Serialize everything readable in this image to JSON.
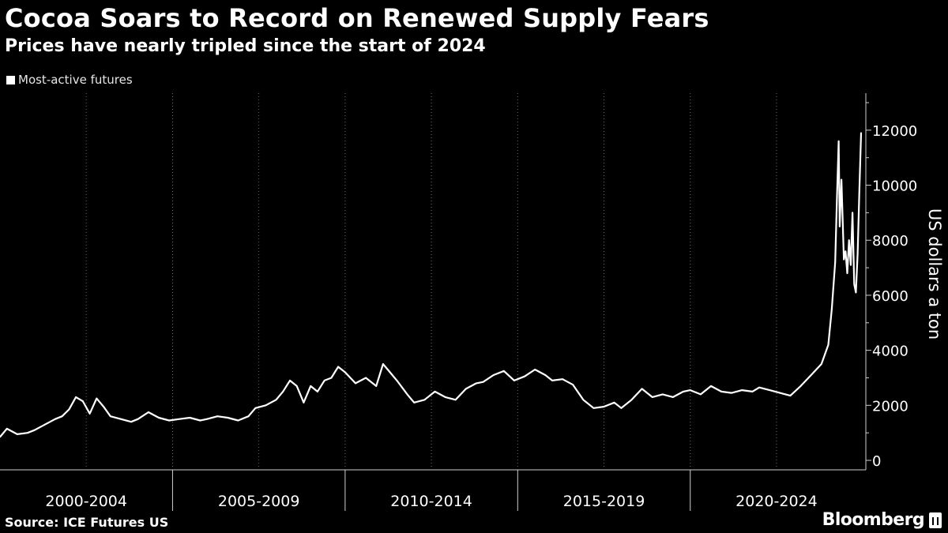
{
  "header": {
    "title": "Cocoa Soars to Record on Renewed Supply Fears",
    "subtitle": "Prices have nearly tripled since the start of 2024"
  },
  "footer": {
    "source": "Source: ICE Futures US",
    "brand": "Bloomberg"
  },
  "colors": {
    "background": "#000000",
    "line": "#ffffff",
    "grid": "#6b6b6b",
    "axis": "#d0d0d0"
  },
  "chart_data": {
    "type": "line",
    "title": "Cocoa Soars to Record on Renewed Supply Fears",
    "subtitle": "Prices have nearly tripled since the start of 2024",
    "legend": [
      "Most-active futures"
    ],
    "legend_position": "top-left",
    "xlabel": "",
    "ylabel": "US dollars a ton",
    "y_axis_side": "right",
    "ylim": [
      0,
      13000
    ],
    "yticks": [
      0,
      2000,
      4000,
      6000,
      8000,
      10000,
      12000
    ],
    "xlim": [
      2000.0,
      2024.95
    ],
    "period_labels": [
      "2000-2004",
      "2005-2009",
      "2010-2014",
      "2015-2019",
      "2020-2024"
    ],
    "period_boundaries": [
      2005,
      2010,
      2015,
      2020
    ],
    "grid": "vertical dotted",
    "series": [
      {
        "name": "Most-active futures",
        "x": [
          2000.0,
          2000.2,
          2000.5,
          2000.8,
          2001.0,
          2001.3,
          2001.6,
          2001.8,
          2002.0,
          2002.2,
          2002.4,
          2002.6,
          2002.8,
          2003.0,
          2003.2,
          2003.5,
          2003.8,
          2004.0,
          2004.3,
          2004.6,
          2004.9,
          2005.2,
          2005.5,
          2005.8,
          2006.0,
          2006.3,
          2006.6,
          2006.9,
          2007.2,
          2007.4,
          2007.7,
          2008.0,
          2008.2,
          2008.4,
          2008.6,
          2008.8,
          2009.0,
          2009.2,
          2009.4,
          2009.6,
          2009.8,
          2010.0,
          2010.3,
          2010.6,
          2010.9,
          2011.1,
          2011.3,
          2011.5,
          2011.8,
          2012.0,
          2012.3,
          2012.6,
          2012.9,
          2013.2,
          2013.5,
          2013.8,
          2014.0,
          2014.3,
          2014.6,
          2014.9,
          2015.2,
          2015.5,
          2015.8,
          2016.0,
          2016.3,
          2016.6,
          2016.9,
          2017.2,
          2017.5,
          2017.8,
          2018.0,
          2018.3,
          2018.6,
          2018.9,
          2019.2,
          2019.5,
          2019.8,
          2020.0,
          2020.3,
          2020.6,
          2020.9,
          2021.2,
          2021.5,
          2021.8,
          2022.0,
          2022.3,
          2022.6,
          2022.9,
          2023.2,
          2023.5,
          2023.8,
          2024.0,
          2024.1,
          2024.2,
          2024.25,
          2024.3,
          2024.33,
          2024.38,
          2024.45,
          2024.5,
          2024.55,
          2024.6,
          2024.65,
          2024.7,
          2024.75,
          2024.8,
          2024.85,
          2024.9,
          2024.95
        ],
        "values": [
          850,
          1150,
          950,
          1000,
          1100,
          1300,
          1500,
          1600,
          1850,
          2300,
          2150,
          1700,
          2250,
          1950,
          1600,
          1500,
          1400,
          1500,
          1750,
          1550,
          1450,
          1500,
          1550,
          1450,
          1500,
          1600,
          1550,
          1450,
          1600,
          1900,
          2000,
          2200,
          2500,
          2900,
          2700,
          2100,
          2700,
          2500,
          2900,
          3000,
          3400,
          3200,
          2800,
          3000,
          2700,
          3500,
          3200,
          2900,
          2400,
          2100,
          2200,
          2500,
          2300,
          2200,
          2600,
          2800,
          2850,
          3100,
          3250,
          2900,
          3050,
          3300,
          3100,
          2900,
          2950,
          2750,
          2200,
          1900,
          1950,
          2100,
          1900,
          2200,
          2600,
          2300,
          2400,
          2300,
          2500,
          2550,
          2400,
          2700,
          2500,
          2450,
          2550,
          2500,
          2650,
          2550,
          2450,
          2350,
          2700,
          3100,
          3500,
          4200,
          5500,
          7200,
          9500,
          11600,
          8500,
          10200,
          7300,
          7600,
          6800,
          8000,
          7100,
          9000,
          6400,
          6100,
          7500,
          9800,
          11900
        ]
      }
    ]
  }
}
